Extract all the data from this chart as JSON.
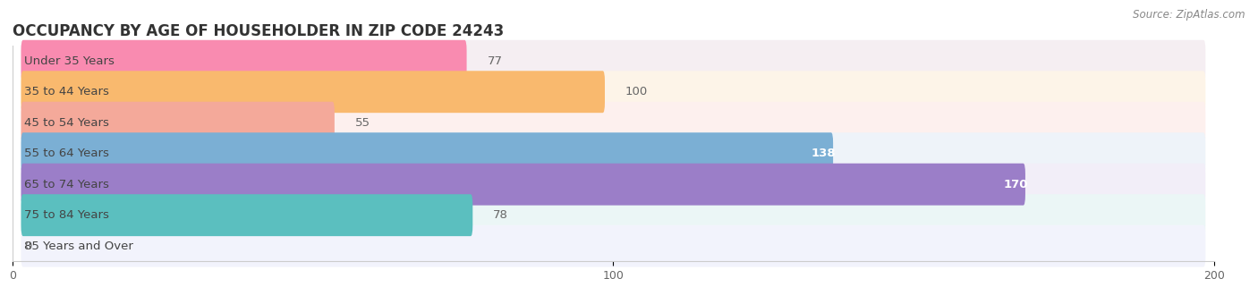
{
  "title": "OCCUPANCY BY AGE OF HOUSEHOLDER IN ZIP CODE 24243",
  "source": "Source: ZipAtlas.com",
  "categories": [
    "Under 35 Years",
    "35 to 44 Years",
    "45 to 54 Years",
    "55 to 64 Years",
    "65 to 74 Years",
    "75 to 84 Years",
    "85 Years and Over"
  ],
  "values": [
    77,
    100,
    55,
    138,
    170,
    78,
    0
  ],
  "bar_colors": [
    "#F98BB0",
    "#F9B96E",
    "#F4A99A",
    "#7BAFD4",
    "#9B7EC8",
    "#5BBFBF",
    "#C3C8EE"
  ],
  "bg_colors": [
    "#F5EEF2",
    "#FDF4E8",
    "#FDF0EE",
    "#EEF3F9",
    "#F2EEF8",
    "#EBF6F6",
    "#F2F3FC"
  ],
  "xlim": [
    0,
    200
  ],
  "xticks": [
    0,
    100,
    200
  ],
  "title_fontsize": 12,
  "label_fontsize": 9.5,
  "value_fontsize": 9.5,
  "bar_height": 0.68,
  "background_color": "#ffffff"
}
